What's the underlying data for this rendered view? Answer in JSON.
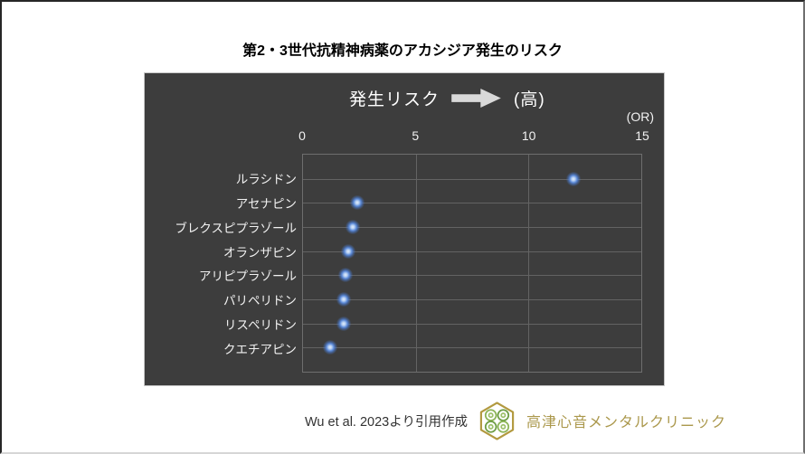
{
  "page": {
    "title": "第2・3世代抗精神病薬のアカシジア発生のリスク"
  },
  "chart": {
    "header_label": "発生リスク",
    "header_high": "(高)",
    "unit_label": "(OR)",
    "arrow_color": "#d9d9d9"
  },
  "chart_data": {
    "type": "scatter",
    "title": "第2・3世代抗精神病薬のアカシジア発生のリスク",
    "categories": [
      "ルラシドン",
      "アセナピン",
      "ブレクスピプラゾール",
      "オランザピン",
      "アリピプラゾール",
      "パリペリドン",
      "リスペリドン",
      "クエチアピン"
    ],
    "values": [
      12.0,
      2.4,
      2.2,
      2.0,
      1.9,
      1.8,
      1.8,
      1.2
    ],
    "xlabel": "(OR)",
    "xlim": [
      0,
      15
    ],
    "xticks": [
      0,
      5,
      10,
      15
    ],
    "x_axis_position": "top",
    "grid": true,
    "legend": "none",
    "background": "#3d3d3d",
    "gridline_color": "#636363",
    "marker_color": "#4a7fd4",
    "text_color": "#f1f1f1"
  },
  "footer": {
    "source": "Wu et al. 2023より引用作成",
    "clinic_name": "高津心音メンタルクリニック",
    "brand_gold": "#b2993f",
    "brand_green": "#7aa74f"
  }
}
